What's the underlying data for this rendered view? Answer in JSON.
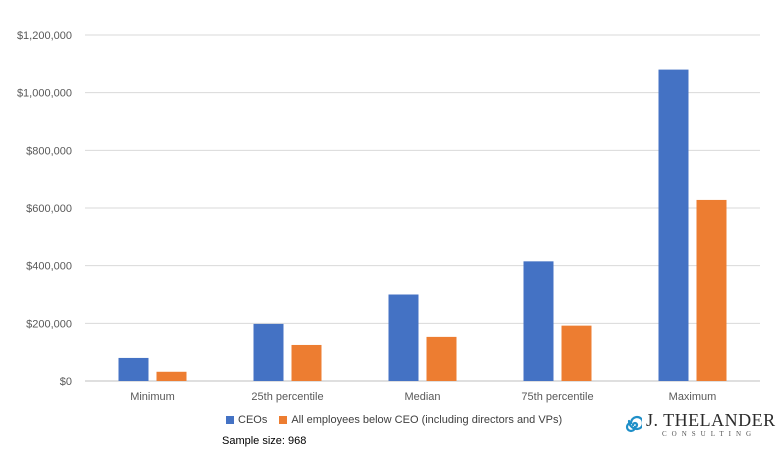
{
  "chart_data": {
    "type": "bar",
    "categories": [
      "Minimum",
      "25th percentile",
      "Median",
      "75th percentile",
      "Maximum"
    ],
    "series": [
      {
        "name": "CEOs",
        "color": "#4472C4",
        "values": [
          80000,
          198000,
          300000,
          415000,
          1080000
        ]
      },
      {
        "name": "All employees below CEO (including directors and VPs)",
        "color": "#ED7D31",
        "values": [
          32000,
          125000,
          153000,
          192000,
          628000
        ]
      }
    ],
    "ylim": [
      0,
      1200000
    ],
    "yticks": [
      0,
      200000,
      400000,
      600000,
      800000,
      1000000,
      1200000
    ],
    "ytick_labels": [
      "$0",
      "$200,000",
      "$400,000",
      "$600,000",
      "$800,000",
      "$1,000,000",
      "$1,200,000"
    ],
    "grid": true,
    "legend_position": "bottom"
  },
  "footer": {
    "sample_size": "Sample size: 968"
  },
  "logo": {
    "name": "J. THELANDER",
    "sub": "CONSULTING",
    "color": "#1f8fc8",
    "icon": "spiral-icon"
  }
}
